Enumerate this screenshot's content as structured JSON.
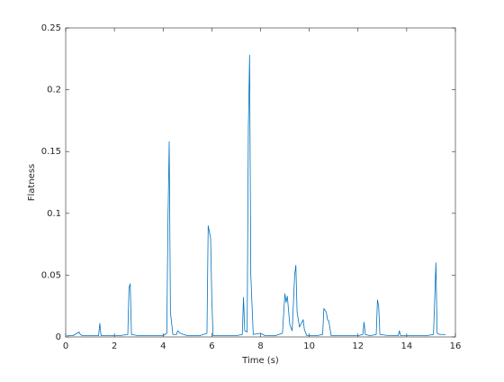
{
  "chart_data": {
    "type": "line",
    "xlabel": "Time (s)",
    "ylabel": "Flatness",
    "xlim": [
      0,
      16
    ],
    "xticks": [
      0,
      2,
      4,
      6,
      8,
      10,
      12,
      14,
      16
    ],
    "ylim": [
      0,
      0.25
    ],
    "yticks": [
      0,
      0.05,
      0.1,
      0.15,
      0.2,
      0.25
    ],
    "grid": false,
    "box": true,
    "series": [
      {
        "color": "#0072bd",
        "x": [
          0.05,
          0.3,
          0.55,
          0.6,
          0.7,
          1.0,
          1.35,
          1.4,
          1.45,
          1.8,
          2.2,
          2.55,
          2.6,
          2.65,
          2.7,
          3.0,
          3.5,
          4.0,
          4.15,
          4.2,
          4.25,
          4.3,
          4.4,
          4.55,
          4.6,
          4.7,
          5.0,
          5.5,
          5.8,
          5.85,
          5.9,
          5.95,
          6.0,
          6.05,
          6.5,
          7.0,
          7.25,
          7.3,
          7.35,
          7.45,
          7.5,
          7.55,
          7.6,
          7.7,
          8.0,
          8.2,
          8.6,
          8.9,
          9.0,
          9.05,
          9.1,
          9.2,
          9.3,
          9.4,
          9.45,
          9.5,
          9.6,
          9.75,
          9.8,
          9.9,
          10.3,
          10.55,
          10.6,
          10.7,
          10.75,
          10.8,
          10.9,
          11.4,
          12.0,
          12.2,
          12.25,
          12.3,
          12.5,
          12.75,
          12.8,
          12.85,
          12.9,
          13.3,
          13.65,
          13.7,
          13.75,
          14.2,
          14.8,
          15.1,
          15.15,
          15.2,
          15.25,
          15.35,
          15.6
        ],
        "values": [
          0.001,
          0.001,
          0.004,
          0.002,
          0.001,
          0.001,
          0.001,
          0.011,
          0.001,
          0.001,
          0.001,
          0.002,
          0.04,
          0.043,
          0.002,
          0.001,
          0.001,
          0.001,
          0.003,
          0.095,
          0.158,
          0.02,
          0.002,
          0.002,
          0.005,
          0.003,
          0.001,
          0.001,
          0.003,
          0.09,
          0.085,
          0.08,
          0.03,
          0.001,
          0.001,
          0.001,
          0.002,
          0.032,
          0.005,
          0.004,
          0.17,
          0.228,
          0.05,
          0.002,
          0.003,
          0.001,
          0.001,
          0.003,
          0.035,
          0.028,
          0.033,
          0.01,
          0.005,
          0.05,
          0.058,
          0.02,
          0.008,
          0.014,
          0.006,
          0.001,
          0.001,
          0.002,
          0.023,
          0.02,
          0.014,
          0.013,
          0.001,
          0.001,
          0.001,
          0.002,
          0.012,
          0.002,
          0.001,
          0.002,
          0.03,
          0.025,
          0.002,
          0.001,
          0.001,
          0.005,
          0.001,
          0.001,
          0.001,
          0.002,
          0.03,
          0.06,
          0.003,
          0.002,
          0.002
        ]
      }
    ]
  }
}
